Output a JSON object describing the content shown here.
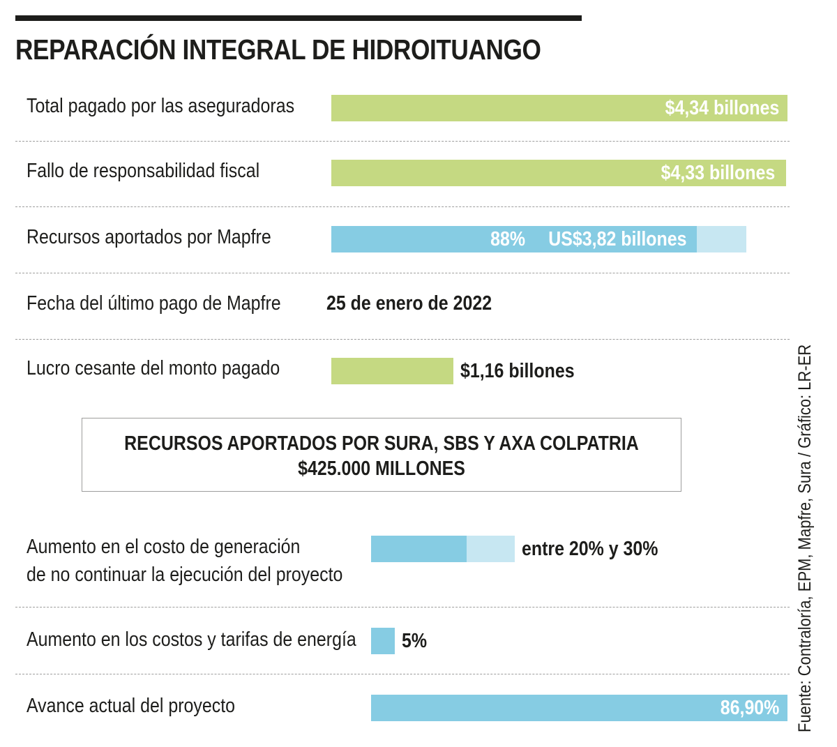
{
  "title": "REPARACIÓN INTEGRAL DE HIDROITUANGO",
  "colors": {
    "green": "#c5d982",
    "blue": "#86cce3",
    "light_blue": "#c7e7f2",
    "text": "#1d1d1b",
    "divider": "#9d9d9c"
  },
  "rows": {
    "aseguradoras": {
      "label": "Total pagado por las aseguradoras",
      "value": "$4,34 billones"
    },
    "fallo": {
      "label": "Fallo de responsabilidad fiscal",
      "value": "$4,33 billones"
    },
    "mapfre": {
      "label": "Recursos aportados por Mapfre",
      "percent": "88%",
      "value": "US$3,82 billones"
    },
    "fecha": {
      "label": "Fecha del último pago de Mapfre",
      "value": "25 de enero de 2022"
    },
    "lucro": {
      "label": "Lucro cesante del monto pagado",
      "value": "$1,16 billones"
    }
  },
  "box": {
    "line1": "RECURSOS APORTADOS POR SURA, SBS Y AXA COLPATRIA",
    "line2": "$425.000 MILLONES"
  },
  "rows2": {
    "aumento_costo": {
      "label_line1": "Aumento en el costo de generación",
      "label_line2": "de no continuar la ejecución del proyecto",
      "value": "entre 20% y 30%"
    },
    "aumento_tarifas": {
      "label": "Aumento en los costos y tarifas de energía",
      "value": "5%"
    },
    "avance": {
      "label": "Avance actual del proyecto",
      "value": "86,90%"
    }
  },
  "source": "Fuente: Contraloría, EPM, Mapfre, Sura / Gráfico: LR-ER",
  "chart_data": {
    "type": "bar",
    "title": "REPARACIÓN INTEGRAL DE HIDROITUANGO",
    "section1_scale_max": 4.34,
    "section1": [
      {
        "category": "Total pagado por las aseguradoras",
        "value": 4.34,
        "unit": "billones",
        "display": "$4,34 billones",
        "color": "#c5d982"
      },
      {
        "category": "Fallo de responsabilidad fiscal",
        "value": 4.33,
        "unit": "billones",
        "display": "$4,33 billones",
        "color": "#c5d982"
      },
      {
        "category": "Recursos aportados por Mapfre",
        "percent": 88,
        "total_fraction_of_scale": 0.91,
        "display": "88%  US$3,82 billones",
        "color": "#86cce3",
        "remainder_color": "#c7e7f2"
      },
      {
        "category": "Lucro cesante del monto pagado",
        "value": 1.16,
        "unit": "billones",
        "display": "$1,16 billones",
        "color": "#c5d982"
      }
    ],
    "section2_scale_max": 100,
    "section2": [
      {
        "category": "Aumento en el costo de generación de no continuar la ejecución del proyecto",
        "range": [
          20,
          30
        ],
        "unit": "%",
        "display": "entre 20% y 30%"
      },
      {
        "category": "Aumento en los costos y tarifas de energía",
        "value": 5,
        "unit": "%",
        "display": "5%"
      },
      {
        "category": "Avance actual del proyecto",
        "value": 86.9,
        "unit": "%",
        "display": "86,90%"
      }
    ]
  }
}
